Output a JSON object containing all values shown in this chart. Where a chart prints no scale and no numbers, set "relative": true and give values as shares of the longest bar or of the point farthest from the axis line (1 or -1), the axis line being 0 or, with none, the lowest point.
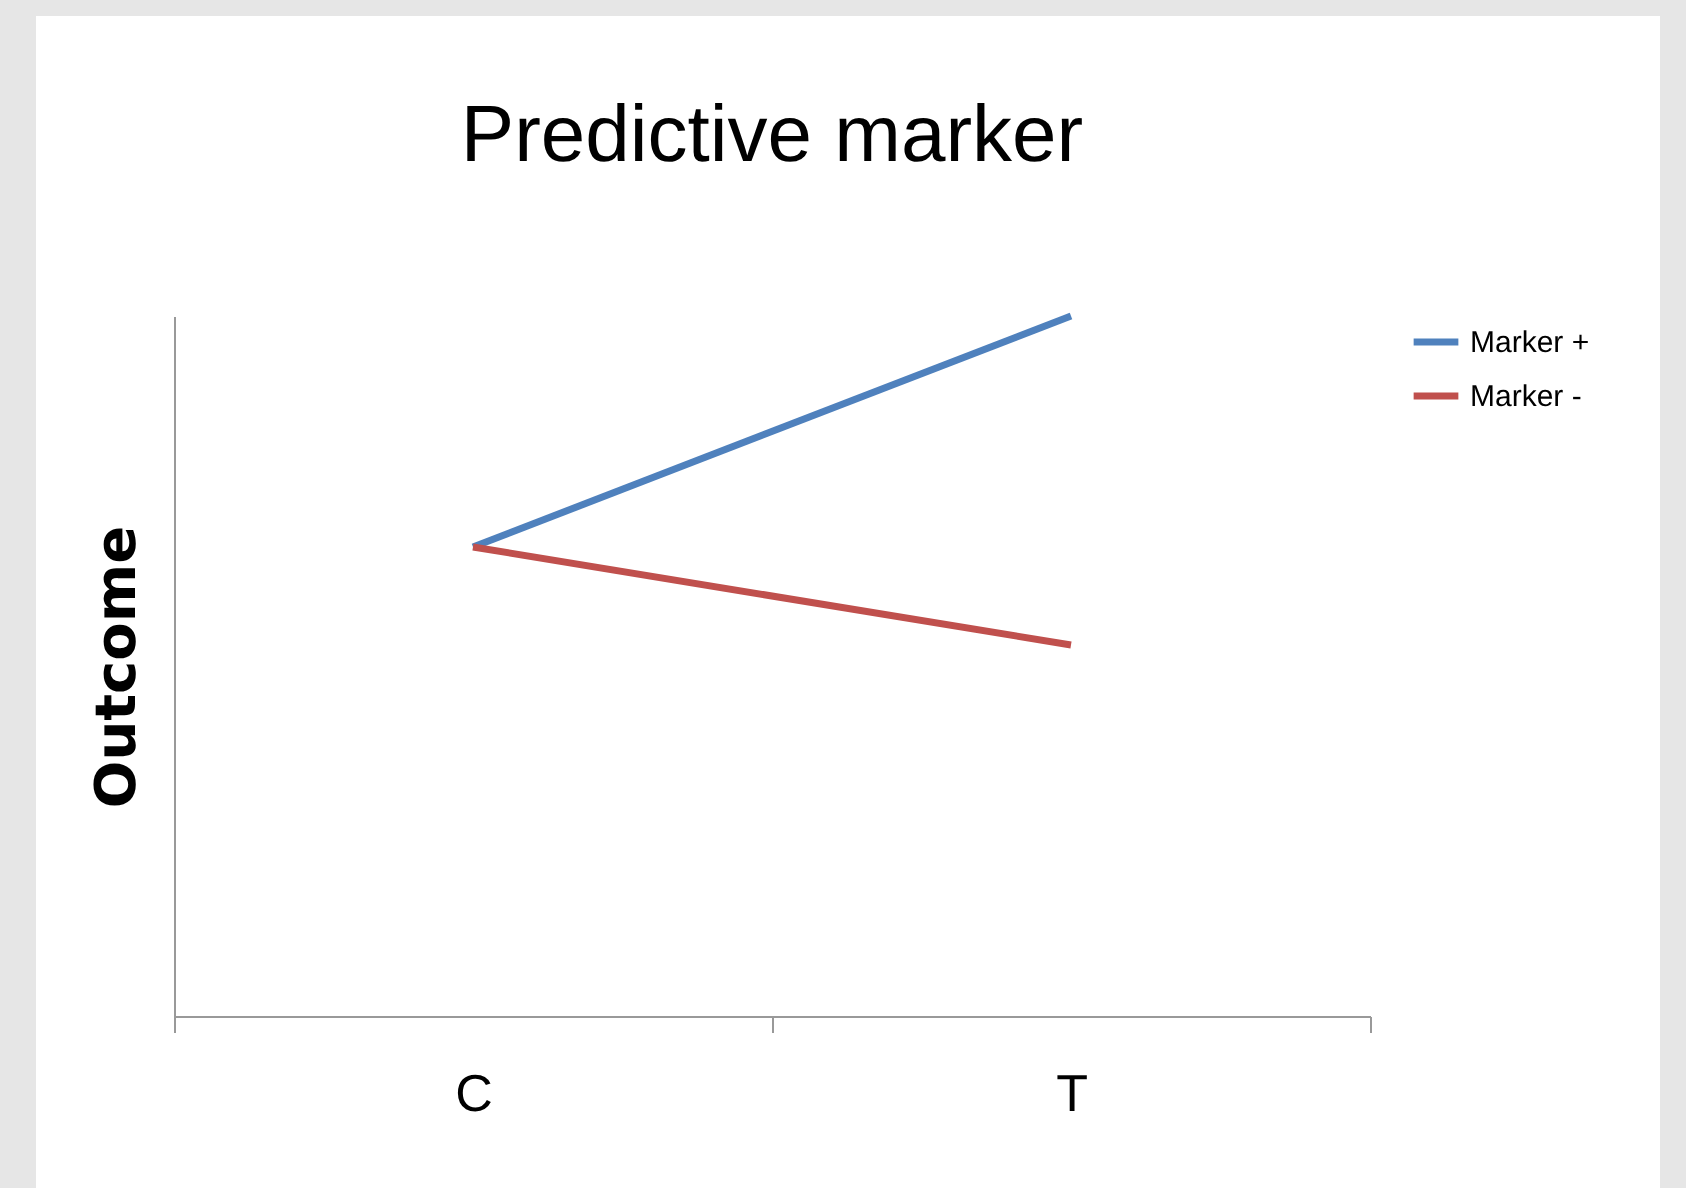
{
  "chart_data": {
    "type": "line",
    "title": "Predictive marker",
    "ylabel": "Outcome",
    "categories": [
      "C",
      "T"
    ],
    "relative": true,
    "legend": "right",
    "grid": false,
    "marker": "none",
    "series": [
      {
        "name": "Marker +",
        "color": "#4f81bd",
        "values": [
          0.67,
          1
        ]
      },
      {
        "name": "Marker -",
        "color": "#c0504d",
        "values": [
          0.67,
          0.53
        ]
      }
    ]
  }
}
